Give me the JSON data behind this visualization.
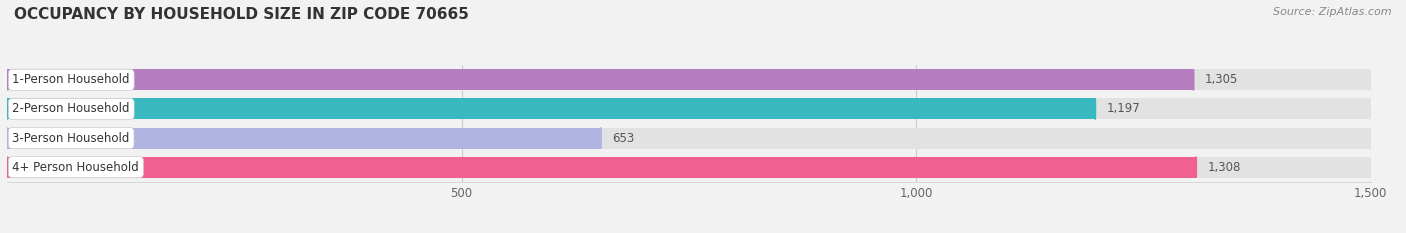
{
  "title": "OCCUPANCY BY HOUSEHOLD SIZE IN ZIP CODE 70665",
  "source": "Source: ZipAtlas.com",
  "categories": [
    "1-Person Household",
    "2-Person Household",
    "3-Person Household",
    "4+ Person Household"
  ],
  "values": [
    1305,
    1197,
    653,
    1308
  ],
  "bar_colors": [
    "#b47dbf",
    "#3ab8bf",
    "#b0b4e0",
    "#f06090"
  ],
  "xlim": [
    0,
    1500
  ],
  "xticks": [
    500,
    1000,
    1500
  ],
  "bg_color": "#f2f2f2",
  "bar_bg_color": "#e2e2e2",
  "label_bg": "#ffffff",
  "title_fontsize": 11,
  "source_fontsize": 8,
  "label_fontsize": 8.5,
  "value_fontsize": 8.5
}
